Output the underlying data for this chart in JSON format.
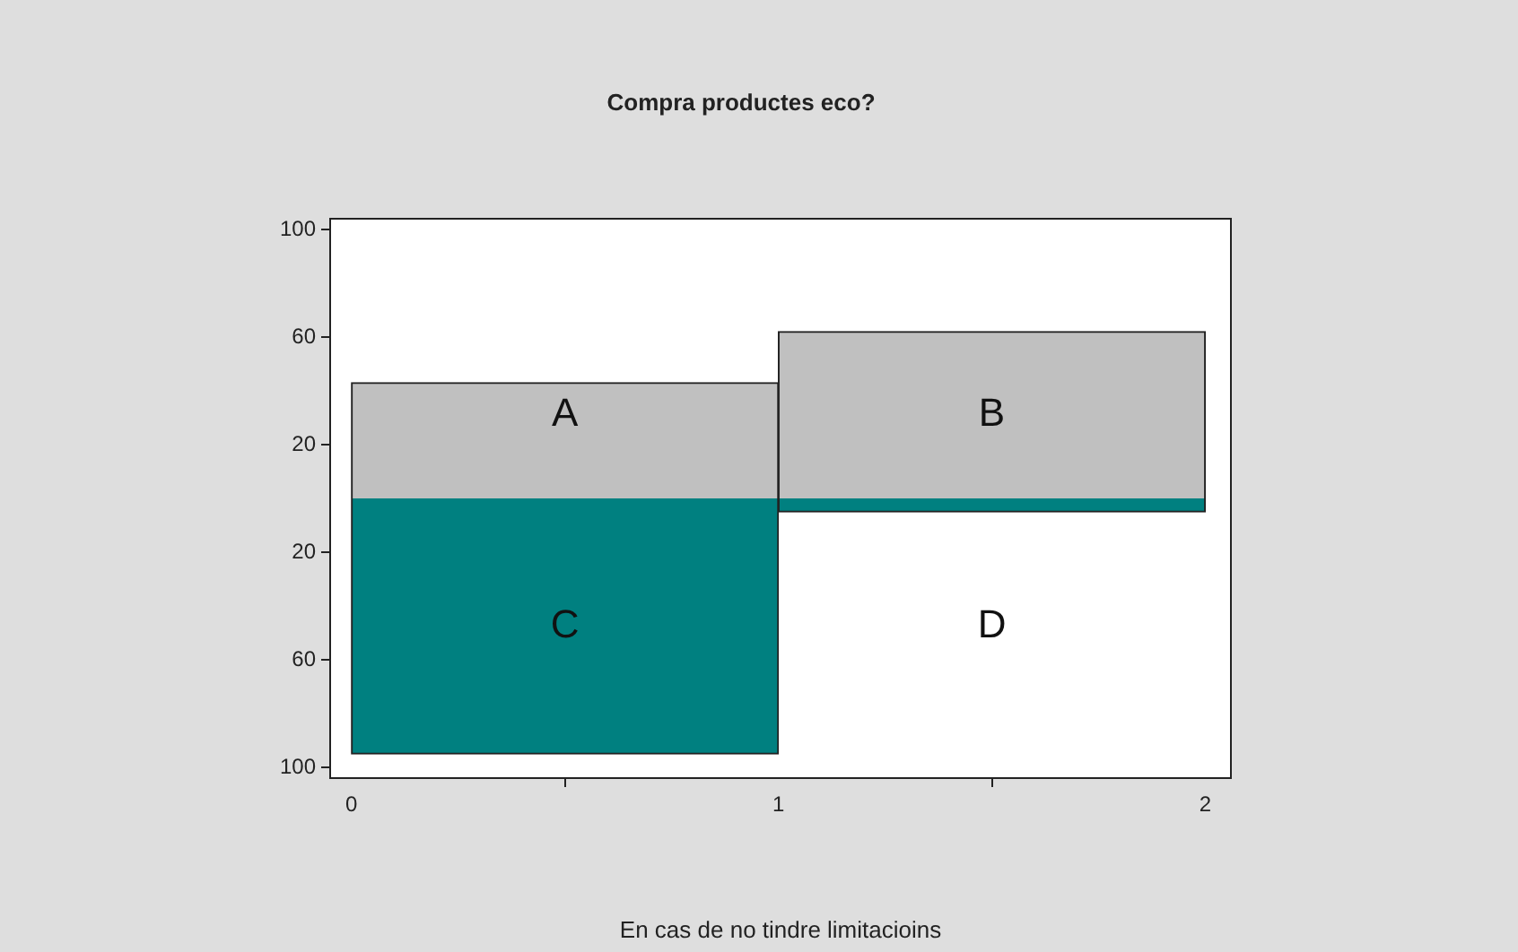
{
  "chart_data": {
    "type": "bar",
    "title": "Compra productes eco?",
    "xlabel": "En cas de no tindre limitacioins",
    "stacked": true,
    "x": [
      0.5,
      1.5
    ],
    "series": [
      {
        "color": "#c0c0c0",
        "values": [
          43,
          62
        ]
      },
      {
        "color": "#008080",
        "values": [
          -95,
          -5
        ]
      }
    ],
    "xlim": [
      -0.05,
      2.06
    ],
    "xticks": [
      0,
      1,
      2
    ],
    "ylim": [
      -104,
      104
    ],
    "yticks": [
      {
        "value": -100,
        "label": "100"
      },
      {
        "value": -60,
        "label": "60"
      },
      {
        "value": -20,
        "label": "20"
      },
      20,
      60,
      100
    ],
    "grid": false,
    "annotations": [
      "A",
      "B",
      "C",
      "D"
    ]
  }
}
